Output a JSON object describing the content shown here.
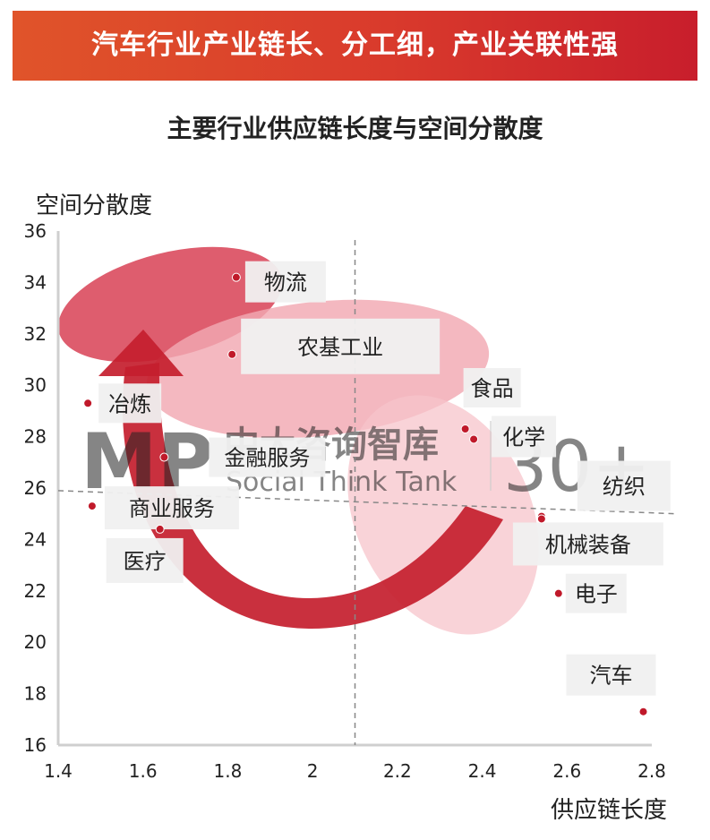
{
  "banner": {
    "title": "汽车行业产业链长、分工细，产业关联性强"
  },
  "chart_data": {
    "type": "scatter",
    "title": "主要行业供应链长度与空间分散度",
    "xlabel": "供应链长度",
    "ylabel": "空间分散度",
    "xlim": [
      1.4,
      2.8
    ],
    "ylim": [
      16,
      36
    ],
    "xticks": [
      "1.4",
      "1.6",
      "1.8",
      "2",
      "2.2",
      "2.4",
      "2.6",
      "2.8"
    ],
    "yticks": [
      "16",
      "18",
      "20",
      "22",
      "24",
      "26",
      "28",
      "30",
      "32",
      "34",
      "36"
    ],
    "points": [
      {
        "label": "物流",
        "x": 1.82,
        "y": 34.2
      },
      {
        "label": "农基工业",
        "x": 1.81,
        "y": 31.2
      },
      {
        "label": "冶炼",
        "x": 1.47,
        "y": 29.3
      },
      {
        "label": "金融服务",
        "x": 1.65,
        "y": 27.2
      },
      {
        "label": "商业服务",
        "x": 1.48,
        "y": 25.3
      },
      {
        "label": "医疗",
        "x": 1.64,
        "y": 24.4
      },
      {
        "label": "食品",
        "x": 2.36,
        "y": 28.3
      },
      {
        "label": "化学",
        "x": 2.38,
        "y": 27.9
      },
      {
        "label": "纺织",
        "x": 2.54,
        "y": 24.9
      },
      {
        "label": "机械装备",
        "x": 2.54,
        "y": 24.8
      },
      {
        "label": "电子",
        "x": 2.58,
        "y": 21.9
      },
      {
        "label": "汽车",
        "x": 2.78,
        "y": 17.3
      }
    ],
    "reference_lines": {
      "vertical_x": 2.1,
      "horizontal_y": 25.5
    },
    "colors": {
      "point": "#c0192a",
      "arrow": "#c41e2e",
      "ellipse_dark": "#d9475a",
      "ellipse_light": "#f2a8b2"
    }
  },
  "watermark": {
    "logo": "MP",
    "cn": "中大咨询智库",
    "en": "Social Think Tank",
    "badge": "30+"
  }
}
